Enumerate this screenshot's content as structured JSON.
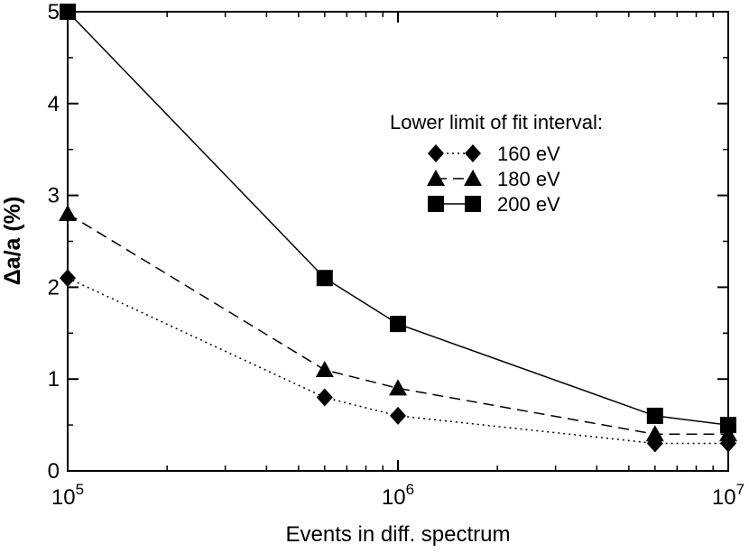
{
  "chart_data": {
    "type": "line",
    "title": "",
    "xlabel": "Events in diff. spectrum",
    "ylabel": "Δa/a (%)",
    "xscale": "log",
    "xlim": [
      100000,
      10000000
    ],
    "ylim": [
      0,
      5
    ],
    "x_ticks": [
      {
        "value": 100000,
        "base": "10",
        "exp": "5"
      },
      {
        "value": 1000000,
        "base": "10",
        "exp": "6"
      },
      {
        "value": 10000000,
        "base": "10",
        "exp": "7"
      }
    ],
    "y_ticks": [
      {
        "value": 0,
        "label": "0"
      },
      {
        "value": 1,
        "label": "1"
      },
      {
        "value": 2,
        "label": "2"
      },
      {
        "value": 3,
        "label": "3"
      },
      {
        "value": 4,
        "label": "4"
      },
      {
        "value": 5,
        "label": "5"
      }
    ],
    "legend_title": "Lower limit of fit interval:",
    "legend_position": "upper-right",
    "series": [
      {
        "name": "160 eV",
        "marker": "diamond",
        "linestyle": "dotted",
        "color": "#000000",
        "x": [
          100000,
          600000,
          1000000,
          6000000,
          10000000
        ],
        "y": [
          2.1,
          0.8,
          0.6,
          0.3,
          0.3
        ]
      },
      {
        "name": "180 eV",
        "marker": "triangle",
        "linestyle": "dashed",
        "color": "#000000",
        "x": [
          100000,
          600000,
          1000000,
          6000000,
          10000000
        ],
        "y": [
          2.8,
          1.1,
          0.9,
          0.4,
          0.4
        ]
      },
      {
        "name": "200 eV",
        "marker": "square",
        "linestyle": "solid",
        "color": "#000000",
        "x": [
          100000,
          600000,
          1000000,
          6000000,
          10000000
        ],
        "y": [
          5.0,
          2.1,
          1.6,
          0.6,
          0.5
        ]
      }
    ]
  }
}
